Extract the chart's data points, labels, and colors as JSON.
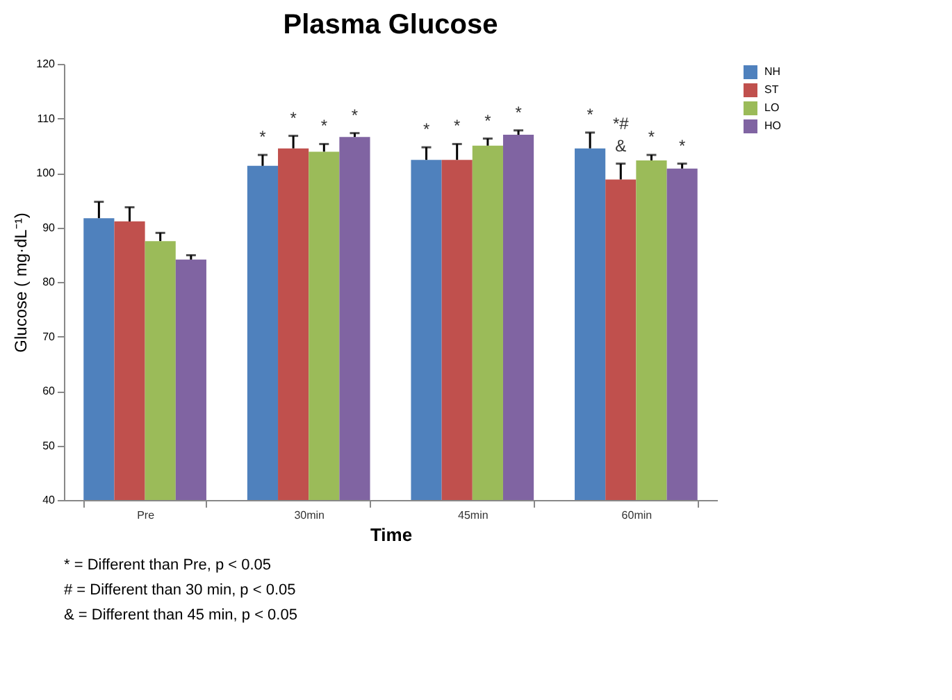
{
  "chart_data": {
    "type": "bar",
    "title": "Plasma Glucose",
    "xlabel": "Time",
    "ylabel": "Glucose ( mg·dL⁻¹)",
    "categories": [
      "Pre",
      "30min",
      "45min",
      "60min"
    ],
    "series": [
      {
        "name": "NH",
        "color": "#4f81bd",
        "values": [
          91.7,
          101.3,
          102.4,
          104.5
        ],
        "errors": [
          [
            91.7,
            94.7
          ],
          [
            101.3,
            103.3
          ],
          [
            102.4,
            104.7
          ],
          [
            104.5,
            107.4
          ]
        ],
        "value_labels": [
          null,
          "*",
          "*",
          "*"
        ]
      },
      {
        "name": "ST",
        "color": "#c0504d",
        "values": [
          91.1,
          104.5,
          102.4,
          98.8
        ],
        "errors": [
          [
            91.1,
            93.7
          ],
          [
            104.5,
            106.8
          ],
          [
            102.4,
            105.3
          ],
          [
            98.8,
            101.7
          ]
        ],
        "value_labels": [
          null,
          "*",
          "*",
          "*#\n&"
        ]
      },
      {
        "name": "LO",
        "color": "#9bbb59",
        "values": [
          87.5,
          103.9,
          105.0,
          102.3
        ],
        "errors": [
          [
            87.5,
            89.0
          ],
          [
            103.9,
            105.3
          ],
          [
            105.0,
            106.3
          ],
          [
            102.3,
            103.3
          ]
        ],
        "value_labels": [
          null,
          "*",
          "*",
          "*"
        ]
      },
      {
        "name": "HO",
        "color": "#8064a2",
        "values": [
          84.1,
          106.6,
          107.0,
          100.8
        ],
        "errors": [
          [
            84.1,
            84.9
          ],
          [
            106.6,
            107.3
          ],
          [
            107.0,
            107.8
          ],
          [
            100.8,
            101.7
          ]
        ],
        "value_labels": [
          null,
          "*",
          "*",
          "*"
        ]
      }
    ],
    "ylim": [
      40,
      120
    ],
    "yticks": [
      40,
      50,
      60,
      70,
      80,
      90,
      100,
      110,
      120
    ],
    "grid": false,
    "legend": "right",
    "annotations": [
      "* = Different than Pre, p < 0.05",
      "# = Different than 30 min, p < 0.05",
      "& = Different than 45 min, p < 0.05"
    ]
  }
}
